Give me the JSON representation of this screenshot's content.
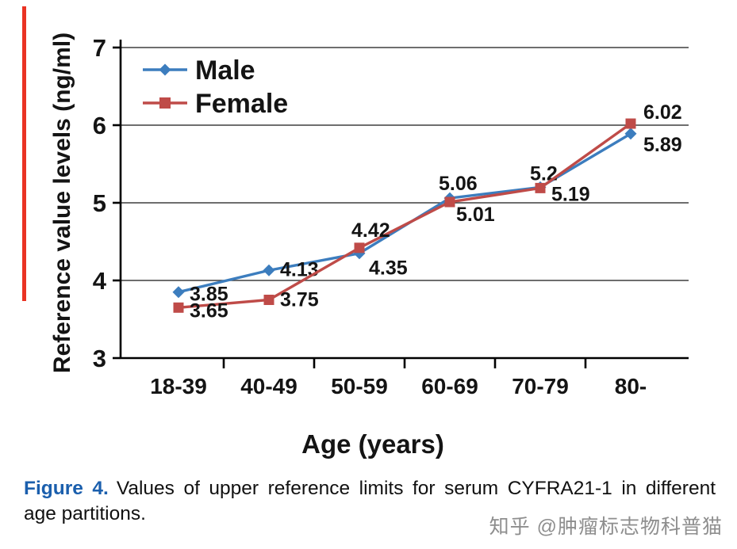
{
  "page": {
    "caption_prefix": "Figure 4.",
    "caption_text": "Values of upper reference limits for serum CYFRA21-1 in different age partitions.",
    "watermark": "知乎 @肿瘤标志物科普猫"
  },
  "chart_data": {
    "type": "line",
    "title": "",
    "xlabel": "Age (years)",
    "ylabel": "Reference value levels (ng/ml)",
    "categories": [
      "18-39",
      "40-49",
      "50-59",
      "60-69",
      "70-79",
      "80-"
    ],
    "series": [
      {
        "name": "Male",
        "color": "#3c7dbe",
        "marker": "diamond",
        "values": [
          3.85,
          4.13,
          4.35,
          5.06,
          5.2,
          5.89
        ]
      },
      {
        "name": "Female",
        "color": "#bf4b48",
        "marker": "square",
        "values": [
          3.65,
          3.75,
          4.42,
          5.01,
          5.19,
          6.02
        ]
      }
    ],
    "ylim": [
      3,
      7
    ],
    "yticks": [
      3,
      4,
      5,
      6,
      7
    ],
    "grid": true,
    "legend_position": "top-left"
  }
}
